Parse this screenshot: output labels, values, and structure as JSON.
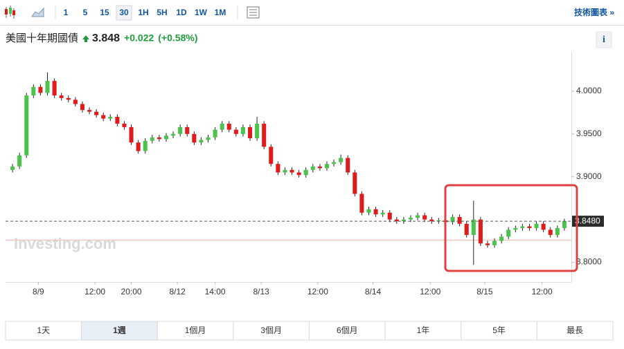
{
  "toolbar": {
    "intervals": [
      "1",
      "5",
      "15",
      "30",
      "1H",
      "5H",
      "1D",
      "1W",
      "1M"
    ],
    "selected_interval": 3,
    "technical_chart_link": "技術圖表 »"
  },
  "header": {
    "name": "美國十年期國債",
    "price": 3.848,
    "change": "+0.022",
    "change_percent": "(+0.58%)",
    "info_button": "i"
  },
  "chart_data": {
    "type": "candlestick",
    "watermark": "Investing.com",
    "up_color": "#4cc34c",
    "down_color": "#e01b1b",
    "x": [
      1,
      2,
      3,
      4,
      5,
      6,
      7,
      8,
      9,
      10,
      11,
      12,
      13,
      14,
      15,
      16,
      17,
      18,
      19,
      20,
      21,
      22,
      23,
      24,
      25,
      26,
      27,
      28,
      29,
      30,
      31,
      32,
      33,
      34,
      35,
      36,
      37,
      38,
      39,
      40,
      41,
      42,
      43,
      44,
      45,
      46,
      47,
      48,
      49,
      50,
      51,
      52,
      53,
      54,
      55,
      56,
      57,
      58,
      59,
      60,
      61,
      62,
      63,
      64,
      65,
      66,
      67,
      68,
      69,
      70,
      71,
      72,
      73,
      74,
      75,
      76,
      77,
      78,
      79,
      80
    ],
    "open": [
      3.908,
      3.912,
      3.925,
      3.995,
      4.005,
      3.998,
      4.012,
      3.995,
      3.992,
      3.99,
      3.985,
      3.978,
      3.976,
      3.972,
      3.968,
      3.97,
      3.962,
      3.958,
      3.94,
      3.93,
      3.942,
      3.946,
      3.944,
      3.948,
      3.95,
      3.958,
      3.95,
      3.94,
      3.943,
      3.946,
      3.955,
      3.962,
      3.955,
      3.95,
      3.958,
      3.945,
      3.962,
      3.935,
      3.915,
      3.905,
      3.908,
      3.905,
      3.902,
      3.908,
      3.912,
      3.91,
      3.915,
      3.917,
      3.922,
      3.905,
      3.88,
      3.858,
      3.862,
      3.856,
      3.858,
      3.85,
      3.848,
      3.85,
      3.852,
      3.855,
      3.85,
      3.848,
      3.849,
      3.847,
      3.853,
      3.845,
      3.832,
      3.85,
      3.822,
      3.82,
      3.825,
      3.83,
      3.838,
      3.84,
      3.842,
      3.84,
      3.845,
      3.838,
      3.832,
      3.84
    ],
    "high": [
      3.915,
      3.928,
      3.998,
      4.008,
      4.008,
      4.022,
      4.015,
      3.998,
      3.995,
      3.993,
      3.988,
      3.981,
      3.979,
      3.975,
      3.973,
      3.973,
      3.965,
      3.961,
      3.943,
      3.945,
      3.949,
      3.949,
      3.951,
      3.953,
      3.961,
      3.961,
      3.953,
      3.946,
      3.949,
      3.958,
      3.965,
      3.965,
      3.958,
      3.961,
      3.961,
      3.97,
      3.965,
      3.938,
      3.918,
      3.911,
      3.911,
      3.908,
      3.911,
      3.915,
      3.915,
      3.918,
      3.92,
      3.926,
      3.925,
      3.908,
      3.883,
      3.865,
      3.865,
      3.861,
      3.861,
      3.853,
      3.853,
      3.855,
      3.858,
      3.858,
      3.853,
      3.852,
      3.852,
      3.856,
      3.856,
      3.848,
      3.872,
      3.853,
      3.825,
      3.828,
      3.833,
      3.841,
      3.843,
      3.845,
      3.845,
      3.848,
      3.848,
      3.841,
      3.843,
      3.851
    ],
    "low": [
      3.905,
      3.909,
      3.922,
      3.992,
      3.995,
      3.995,
      3.992,
      3.989,
      3.987,
      3.982,
      3.975,
      3.973,
      3.969,
      3.965,
      3.965,
      3.959,
      3.955,
      3.937,
      3.927,
      3.927,
      3.939,
      3.941,
      3.941,
      3.945,
      3.947,
      3.947,
      3.937,
      3.937,
      3.94,
      3.943,
      3.952,
      3.952,
      3.947,
      3.947,
      3.942,
      3.942,
      3.932,
      3.912,
      3.902,
      3.902,
      3.902,
      3.899,
      3.899,
      3.905,
      3.907,
      3.907,
      3.912,
      3.914,
      3.902,
      3.877,
      3.855,
      3.855,
      3.853,
      3.853,
      3.847,
      3.845,
      3.845,
      3.847,
      3.849,
      3.847,
      3.845,
      3.845,
      3.844,
      3.844,
      3.842,
      3.829,
      3.797,
      3.819,
      3.817,
      3.817,
      3.822,
      3.827,
      3.835,
      3.837,
      3.837,
      3.837,
      3.835,
      3.829,
      3.829,
      3.837
    ],
    "close": [
      3.912,
      3.925,
      3.995,
      4.005,
      3.998,
      4.012,
      3.995,
      3.992,
      3.99,
      3.985,
      3.978,
      3.976,
      3.972,
      3.968,
      3.97,
      3.962,
      3.958,
      3.94,
      3.93,
      3.942,
      3.946,
      3.944,
      3.948,
      3.95,
      3.958,
      3.95,
      3.94,
      3.943,
      3.946,
      3.955,
      3.962,
      3.955,
      3.95,
      3.958,
      3.945,
      3.962,
      3.935,
      3.915,
      3.905,
      3.908,
      3.905,
      3.902,
      3.908,
      3.912,
      3.91,
      3.915,
      3.917,
      3.922,
      3.905,
      3.88,
      3.858,
      3.862,
      3.856,
      3.858,
      3.85,
      3.848,
      3.85,
      3.852,
      3.855,
      3.85,
      3.848,
      3.849,
      3.847,
      3.853,
      3.845,
      3.832,
      3.85,
      3.822,
      3.82,
      3.825,
      3.83,
      3.838,
      3.84,
      3.842,
      3.84,
      3.845,
      3.838,
      3.832,
      3.84,
      3.848
    ],
    "xlim": [
      0,
      81
    ],
    "ylim": [
      3.777,
      4.046
    ],
    "xticks": [
      {
        "value": 4.7,
        "label": "8/9"
      },
      {
        "value": 12.8,
        "label": "12:00"
      },
      {
        "value": 18,
        "label": "20:00"
      },
      {
        "value": 24.6,
        "label": "8/12"
      },
      {
        "value": 30,
        "label": "14:00"
      },
      {
        "value": 36.6,
        "label": "8/13"
      },
      {
        "value": 44.7,
        "label": "12:00"
      },
      {
        "value": 52.6,
        "label": "8/14"
      },
      {
        "value": 60.8,
        "label": "12:00"
      },
      {
        "value": 68.6,
        "label": "8/15"
      },
      {
        "value": 76.8,
        "label": "12:00"
      }
    ],
    "yticks": [
      {
        "value": 3.8,
        "label": "3.8000"
      },
      {
        "value": 3.9,
        "label": "3.9000"
      },
      {
        "value": 3.95,
        "label": "3.9500"
      },
      {
        "value": 4.0,
        "label": "4.0000"
      }
    ],
    "last_price": {
      "value": 3.848,
      "label": "3.8480"
    },
    "previous_close": 3.826
  },
  "range_tabs": {
    "tabs": [
      "1天",
      "1週",
      "1個月",
      "3個月",
      "6個月",
      "1年",
      "5年",
      "最長"
    ],
    "selected": 1
  }
}
